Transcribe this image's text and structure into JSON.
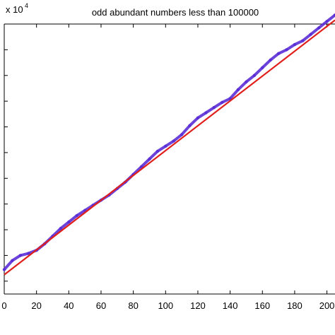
{
  "chart_data": {
    "type": "line",
    "title": "odd abundant numbers less than 100000",
    "xlabel": "",
    "ylabel": "",
    "y_exponent_label": "x 10",
    "y_exponent_power": "4",
    "xlim": [
      0,
      205
    ],
    "ylim": [
      0,
      10.5
    ],
    "y_multiplier": 10000,
    "grid": false,
    "x_ticks": [
      0,
      20,
      40,
      60,
      80,
      100,
      120,
      140,
      160,
      180,
      200
    ],
    "x_tick_labels": [
      "0",
      "20",
      "40",
      "60",
      "80",
      "100",
      "120",
      "140",
      "160",
      "180",
      "200"
    ],
    "y_ticks": [
      0.5,
      1.5,
      2.5,
      3.5,
      4.5,
      5.5,
      6.5,
      7.5,
      8.5,
      9.5
    ],
    "series": [
      {
        "color": "#5b2fd6",
        "style": "dots",
        "x": [
          0,
          5,
          10,
          15,
          20,
          25,
          30,
          35,
          40,
          45,
          50,
          55,
          60,
          65,
          70,
          75,
          80,
          85,
          90,
          95,
          100,
          105,
          110,
          115,
          120,
          125,
          130,
          135,
          140,
          145,
          150,
          155,
          160,
          165,
          170,
          175,
          180,
          185,
          190,
          195,
          200,
          205
        ],
        "y": [
          0.95,
          1.3,
          1.5,
          1.58,
          1.7,
          1.95,
          2.25,
          2.55,
          2.8,
          3.05,
          3.25,
          3.45,
          3.65,
          3.85,
          4.1,
          4.35,
          4.65,
          4.95,
          5.25,
          5.55,
          5.75,
          5.95,
          6.2,
          6.55,
          6.85,
          7.05,
          7.25,
          7.45,
          7.6,
          7.95,
          8.25,
          8.5,
          8.8,
          9.1,
          9.35,
          9.5,
          9.7,
          9.85,
          10.1,
          10.35,
          10.6,
          10.85
        ]
      },
      {
        "color": "#e0201c",
        "style": "line",
        "x": [
          0,
          205
        ],
        "y": [
          0.75,
          10.65
        ]
      }
    ]
  }
}
